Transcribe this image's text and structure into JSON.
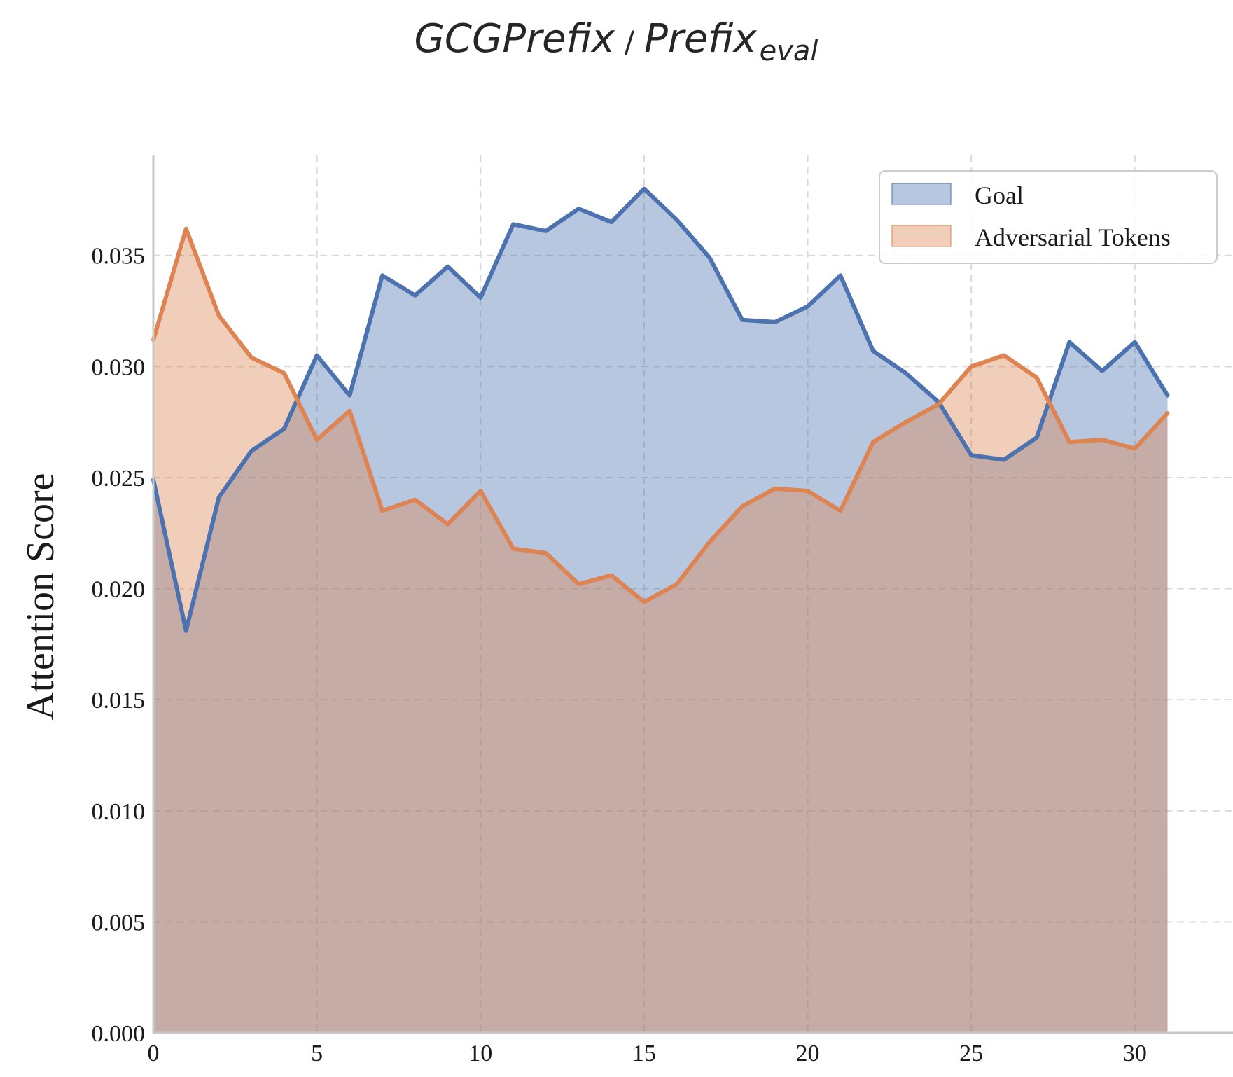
{
  "chart_data": {
    "type": "area",
    "title": {
      "main_left": "GCGPrefix",
      "separator": "/",
      "main_right": "Prefix",
      "subscript": "eval"
    },
    "xlabel": "",
    "ylabel": "Attention Score",
    "xlim": [
      0,
      33
    ],
    "ylim": [
      0,
      0.0395
    ],
    "x_ticks": [
      0,
      5,
      10,
      15,
      20,
      25,
      30
    ],
    "y_ticks": [
      "0.000",
      "0.005",
      "0.010",
      "0.015",
      "0.020",
      "0.025",
      "0.030",
      "0.035"
    ],
    "grid": true,
    "legend_position": "top-right",
    "x": [
      0,
      1,
      2,
      3,
      4,
      5,
      6,
      7,
      8,
      9,
      10,
      11,
      12,
      13,
      14,
      15,
      16,
      17,
      18,
      19,
      20,
      21,
      22,
      23,
      24,
      25,
      26,
      27,
      28,
      29,
      30,
      31
    ],
    "series": [
      {
        "name": "Goal",
        "color": "#4c72b0",
        "fill": "#4c72b0",
        "values": [
          0.0249,
          0.0181,
          0.0241,
          0.0262,
          0.0272,
          0.0305,
          0.0287,
          0.0341,
          0.0332,
          0.0345,
          0.0331,
          0.0364,
          0.0361,
          0.0371,
          0.0365,
          0.038,
          0.0366,
          0.0349,
          0.0321,
          0.032,
          0.0327,
          0.0341,
          0.0307,
          0.0297,
          0.0284,
          0.026,
          0.0258,
          0.0268,
          0.0311,
          0.0298,
          0.0311,
          0.0287
        ]
      },
      {
        "name": "Adversarial Tokens",
        "color": "#dd8452",
        "fill": "#dd8452",
        "values": [
          0.0312,
          0.0362,
          0.0323,
          0.0304,
          0.0297,
          0.0267,
          0.028,
          0.0235,
          0.024,
          0.0229,
          0.0244,
          0.0218,
          0.0216,
          0.0202,
          0.0206,
          0.0194,
          0.0202,
          0.0221,
          0.0237,
          0.0245,
          0.0244,
          0.0235,
          0.0266,
          0.0275,
          0.0283,
          0.03,
          0.0305,
          0.0295,
          0.0266,
          0.0267,
          0.0263,
          0.0279
        ]
      }
    ]
  }
}
